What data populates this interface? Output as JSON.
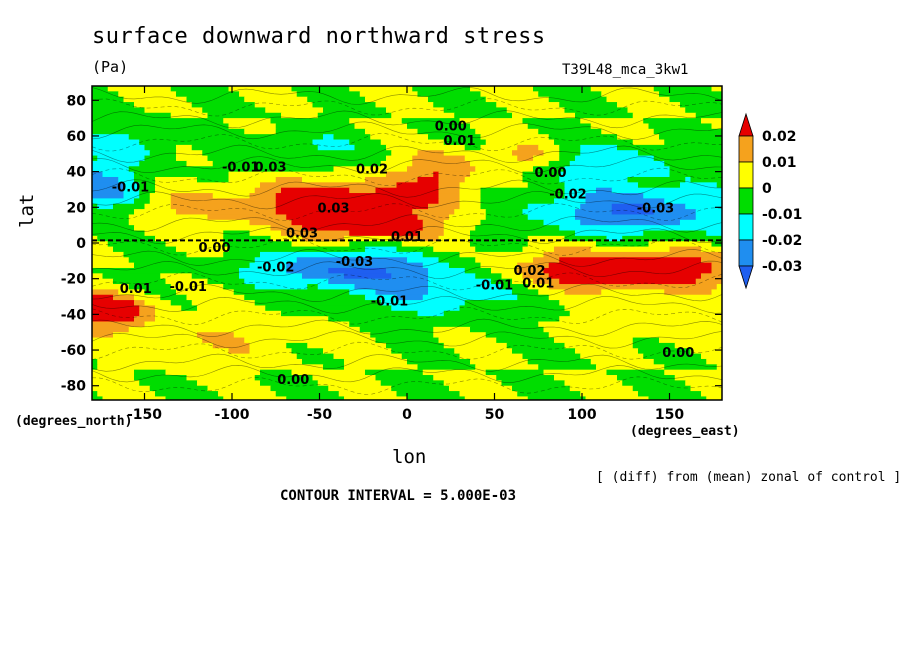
{
  "chart_data": {
    "type": "heatmap",
    "title": "surface downward northward stress",
    "units": "(Pa)",
    "run_label": "T39L48_mca_3kw1",
    "xlabel": "lon",
    "ylabel": "lat",
    "x_unit_label": "(degrees_east)",
    "y_unit_label": "(degrees_north)",
    "note": "[ (diff) from (mean) zonal of control ]",
    "contour_interval": "CONTOUR INTERVAL = 5.000E-03",
    "xlim": [
      -180,
      180
    ],
    "ylim": [
      -88,
      88
    ],
    "x_ticks": [
      -150,
      -100,
      -50,
      0,
      50,
      100,
      150
    ],
    "y_ticks": [
      80,
      60,
      40,
      20,
      0,
      -20,
      -40,
      -60,
      -80
    ],
    "x_tick_labels": [
      "-150",
      "-100",
      "-50",
      "0",
      "50",
      "100",
      "150"
    ],
    "y_tick_labels": [
      "80",
      "60",
      "40",
      "20",
      "0",
      "-20",
      "-40",
      "-60",
      "-80"
    ],
    "colorbar": {
      "levels": [
        "0.02",
        "0.01",
        "0",
        "-0.01",
        "-0.02",
        "-0.03"
      ],
      "colors": [
        "#e60000",
        "#f5a21d",
        "#ffff00",
        "#00dd00",
        "#00ffff",
        "#1f8ef0",
        "#1f5ff0"
      ]
    },
    "contour_labels": [
      {
        "text": "0.00",
        "lon": 25,
        "lat": 63
      },
      {
        "text": "0.01",
        "lon": 30,
        "lat": 55
      },
      {
        "text": "-0.01",
        "lon": -158,
        "lat": 29
      },
      {
        "text": "-0.01",
        "lon": -95,
        "lat": 40
      },
      {
        "text": "0.03",
        "lon": -78,
        "lat": 40
      },
      {
        "text": "0.02",
        "lon": -20,
        "lat": 39
      },
      {
        "text": "0.03",
        "lon": -42,
        "lat": 17
      },
      {
        "text": "0.00",
        "lon": 82,
        "lat": 37
      },
      {
        "text": "-0.02",
        "lon": 92,
        "lat": 25
      },
      {
        "text": "-0.03",
        "lon": 142,
        "lat": 17
      },
      {
        "text": "0.03",
        "lon": -60,
        "lat": 3
      },
      {
        "text": "0.00",
        "lon": -110,
        "lat": -5
      },
      {
        "text": "-0.02",
        "lon": -75,
        "lat": -16
      },
      {
        "text": "-0.03",
        "lon": -30,
        "lat": -13
      },
      {
        "text": "0.01",
        "lon": 0,
        "lat": 1
      },
      {
        "text": "-0.01",
        "lon": -125,
        "lat": -27
      },
      {
        "text": "0.01",
        "lon": -155,
        "lat": -28
      },
      {
        "text": "0.02",
        "lon": 70,
        "lat": -18
      },
      {
        "text": "0.01",
        "lon": 75,
        "lat": -25
      },
      {
        "text": "-0.01",
        "lon": 50,
        "lat": -26
      },
      {
        "text": "-0.01",
        "lon": -10,
        "lat": -35
      },
      {
        "text": "0.00",
        "lon": -65,
        "lat": -79
      },
      {
        "text": "0.00",
        "lon": 155,
        "lat": -64
      }
    ]
  }
}
